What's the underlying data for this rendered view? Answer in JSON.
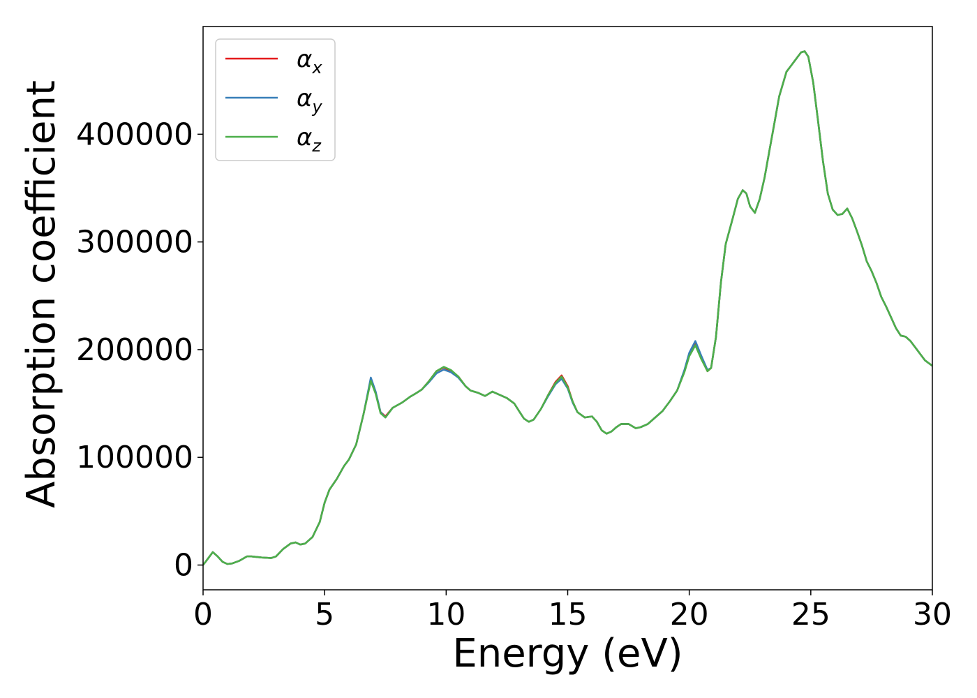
{
  "chart_data": {
    "type": "line",
    "title": "",
    "xlabel": "Energy (eV)",
    "ylabel": "Absorption coefficient",
    "xlim": [
      0,
      30
    ],
    "ylim": [
      -23000,
      500000
    ],
    "xticks": [
      0,
      5,
      10,
      15,
      20,
      25,
      30
    ],
    "yticks": [
      0,
      100000,
      200000,
      300000,
      400000
    ],
    "grid": false,
    "legend_position": "top-left",
    "legend": [
      {
        "symbol": "α",
        "sub": "x",
        "color": "#e41a1c"
      },
      {
        "symbol": "α",
        "sub": "y",
        "color": "#377eb8"
      },
      {
        "symbol": "α",
        "sub": "z",
        "color": "#4daf4a"
      }
    ],
    "x": [
      0,
      0.2,
      0.4,
      0.6,
      0.8,
      1.0,
      1.2,
      1.5,
      1.8,
      2.0,
      2.4,
      2.8,
      3.0,
      3.3,
      3.6,
      3.8,
      4.0,
      4.2,
      4.5,
      4.8,
      5.0,
      5.2,
      5.5,
      5.8,
      6.0,
      6.3,
      6.6,
      6.9,
      7.1,
      7.3,
      7.5,
      7.8,
      8.2,
      8.5,
      8.8,
      9.0,
      9.3,
      9.6,
      9.9,
      10.2,
      10.5,
      10.8,
      11.0,
      11.3,
      11.6,
      11.9,
      12.2,
      12.5,
      12.8,
      13.0,
      13.2,
      13.4,
      13.6,
      13.9,
      14.2,
      14.5,
      14.75,
      15.0,
      15.2,
      15.4,
      15.7,
      16.0,
      16.2,
      16.4,
      16.6,
      16.8,
      17.0,
      17.2,
      17.5,
      17.8,
      18.0,
      18.3,
      18.6,
      18.9,
      19.2,
      19.5,
      19.8,
      20.0,
      20.25,
      20.5,
      20.75,
      20.9,
      21.1,
      21.3,
      21.5,
      21.8,
      22.0,
      22.2,
      22.35,
      22.5,
      22.7,
      22.9,
      23.1,
      23.3,
      23.5,
      23.7,
      24.0,
      24.2,
      24.4,
      24.6,
      24.75,
      24.9,
      25.1,
      25.3,
      25.5,
      25.7,
      25.9,
      26.1,
      26.3,
      26.5,
      26.7,
      26.9,
      27.1,
      27.3,
      27.5,
      27.7,
      27.9,
      28.1,
      28.3,
      28.5,
      28.7,
      28.9,
      29.1,
      29.3,
      29.5,
      29.7,
      30.0
    ],
    "series": [
      {
        "name": "α_x",
        "color": "#e41a1c",
        "values": [
          0,
          6000,
          12000,
          8000,
          3000,
          1000,
          1500,
          4000,
          8000,
          8000,
          7000,
          6500,
          8000,
          15000,
          20000,
          21000,
          19000,
          20000,
          26000,
          40000,
          58000,
          70000,
          80000,
          92000,
          98000,
          112000,
          140000,
          172000,
          160000,
          142000,
          138000,
          146000,
          151000,
          156000,
          160000,
          163000,
          171000,
          180000,
          183500,
          180000,
          175000,
          166000,
          162000,
          160000,
          157000,
          161000,
          158000,
          155000,
          150000,
          143000,
          136000,
          133000,
          135000,
          145000,
          158000,
          170000,
          176000,
          166000,
          152000,
          142000,
          137000,
          138000,
          133000,
          125000,
          122000,
          124000,
          128000,
          131000,
          131000,
          127000,
          128000,
          131000,
          137000,
          143000,
          152000,
          162000,
          180000,
          195000,
          206000,
          192000,
          180000,
          183000,
          212000,
          262000,
          298000,
          323000,
          340000,
          348000,
          345000,
          333000,
          327000,
          340000,
          360000,
          385000,
          410000,
          435000,
          458000,
          464000,
          470000,
          476000,
          477000,
          472000,
          448000,
          412000,
          375000,
          345000,
          330000,
          325000,
          326000,
          331000,
          322000,
          310000,
          297000,
          282000,
          273000,
          262000,
          249000,
          240000,
          230000,
          220000,
          213000,
          212000,
          208000,
          202000,
          196000,
          190000,
          185000
        ]
      },
      {
        "name": "α_y",
        "color": "#377eb8",
        "values": [
          0,
          6000,
          12000,
          8000,
          3000,
          1000,
          1500,
          4000,
          8000,
          8000,
          7000,
          6500,
          8000,
          15000,
          20000,
          21000,
          19000,
          20000,
          26000,
          40000,
          58000,
          70000,
          80000,
          92000,
          98000,
          112000,
          140000,
          174000,
          161000,
          142000,
          137000,
          146000,
          151000,
          156000,
          160000,
          163000,
          170000,
          178000,
          181500,
          179000,
          174000,
          166000,
          162000,
          160000,
          157000,
          161000,
          158000,
          155000,
          150000,
          143000,
          136000,
          133000,
          135000,
          145000,
          157000,
          168000,
          173000,
          164000,
          151000,
          142000,
          137000,
          138000,
          133000,
          125000,
          122000,
          124000,
          128000,
          131000,
          131000,
          127000,
          128000,
          131000,
          137000,
          143000,
          152000,
          162000,
          181000,
          197000,
          208000,
          194000,
          181000,
          183000,
          212000,
          262000,
          298000,
          323000,
          340000,
          348000,
          345000,
          333000,
          327000,
          340000,
          360000,
          385000,
          410000,
          435000,
          458000,
          464000,
          470000,
          476000,
          477000,
          472000,
          448000,
          412000,
          375000,
          345000,
          330000,
          325000,
          326000,
          331000,
          322000,
          310000,
          297000,
          282000,
          273000,
          262000,
          249000,
          240000,
          230000,
          220000,
          213000,
          212000,
          208000,
          202000,
          196000,
          190000,
          185000
        ]
      },
      {
        "name": "α_z",
        "color": "#4daf4a",
        "values": [
          0,
          6000,
          12000,
          8000,
          3000,
          1000,
          1500,
          4000,
          8000,
          8000,
          7000,
          6500,
          8000,
          15000,
          20000,
          21000,
          19000,
          20000,
          26000,
          40000,
          58000,
          70000,
          80000,
          92000,
          98000,
          112000,
          140000,
          171000,
          159000,
          141000,
          137000,
          146000,
          151000,
          156000,
          160000,
          163000,
          171000,
          180000,
          184000,
          181000,
          175000,
          166000,
          162000,
          160000,
          157000,
          161000,
          158000,
          155000,
          150000,
          143000,
          136000,
          133000,
          135000,
          145000,
          158000,
          169000,
          175000,
          165000,
          152000,
          142000,
          137000,
          138000,
          133000,
          125000,
          122000,
          124000,
          128000,
          131000,
          131000,
          127000,
          128000,
          131000,
          137000,
          143000,
          152000,
          162000,
          179000,
          194000,
          204000,
          191000,
          180000,
          183000,
          212000,
          262000,
          298000,
          323000,
          340000,
          348000,
          345000,
          333000,
          327000,
          340000,
          360000,
          385000,
          410000,
          435000,
          458000,
          464000,
          470000,
          476000,
          477000,
          472000,
          448000,
          412000,
          375000,
          345000,
          330000,
          325000,
          326000,
          331000,
          322000,
          310000,
          297000,
          282000,
          273000,
          262000,
          249000,
          240000,
          230000,
          220000,
          213000,
          212000,
          208000,
          202000,
          196000,
          190000,
          185000
        ]
      }
    ]
  }
}
